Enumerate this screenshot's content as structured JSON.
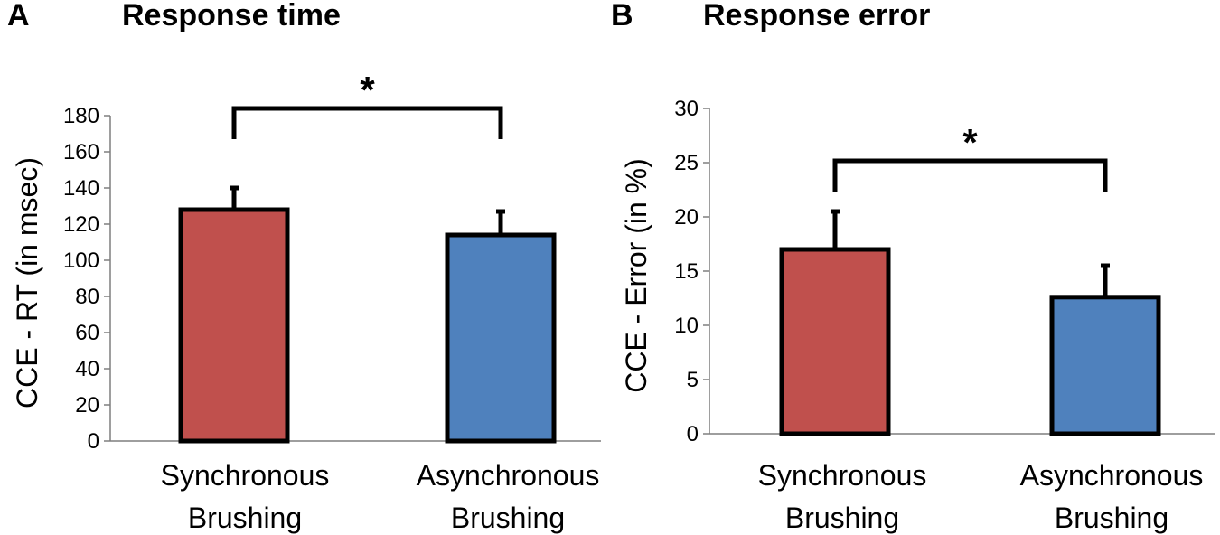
{
  "chart_data": [
    {
      "panel": "A",
      "type": "bar",
      "title": "Response time",
      "ylabel": "CCE - RT (in msec)",
      "xlabel": "",
      "ylim": [
        0,
        180
      ],
      "yticks": [
        0,
        20,
        40,
        60,
        80,
        100,
        120,
        140,
        160,
        180
      ],
      "categories": [
        [
          "Synchronous",
          "Brushing"
        ],
        [
          "Asynchronous",
          "Brushing"
        ]
      ],
      "values": [
        128,
        114
      ],
      "errors": [
        12,
        13
      ],
      "colors": [
        "#c0504d",
        "#4f81bd"
      ],
      "significance": {
        "from": 0,
        "to": 1,
        "label": "*",
        "level": 182
      }
    },
    {
      "panel": "B",
      "type": "bar",
      "title": "Response error",
      "ylabel": "CCE  - Error (in %)",
      "xlabel": "",
      "ylim": [
        0,
        30
      ],
      "yticks": [
        0,
        5,
        10,
        15,
        20,
        25,
        30
      ],
      "categories": [
        [
          "Synchronous",
          "Brushing"
        ],
        [
          "Asynchronous",
          "Brushing"
        ]
      ],
      "values": [
        17,
        12.6
      ],
      "errors": [
        3.5,
        2.9
      ],
      "colors": [
        "#c0504d",
        "#4f81bd"
      ],
      "significance": {
        "from": 0,
        "to": 1,
        "label": "*",
        "level": 25
      }
    }
  ]
}
